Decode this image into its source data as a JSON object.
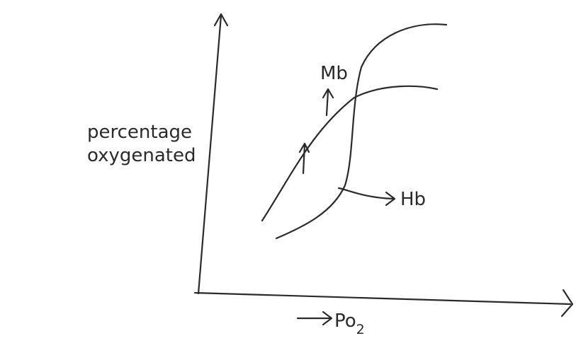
{
  "y_label": [
    "percentage",
    "oxygenated"
  ],
  "curves": [
    {
      "label": "Mb"
    },
    {
      "label": "Hb"
    }
  ],
  "x_label": {
    "text": "Po",
    "subscript": "2"
  }
}
